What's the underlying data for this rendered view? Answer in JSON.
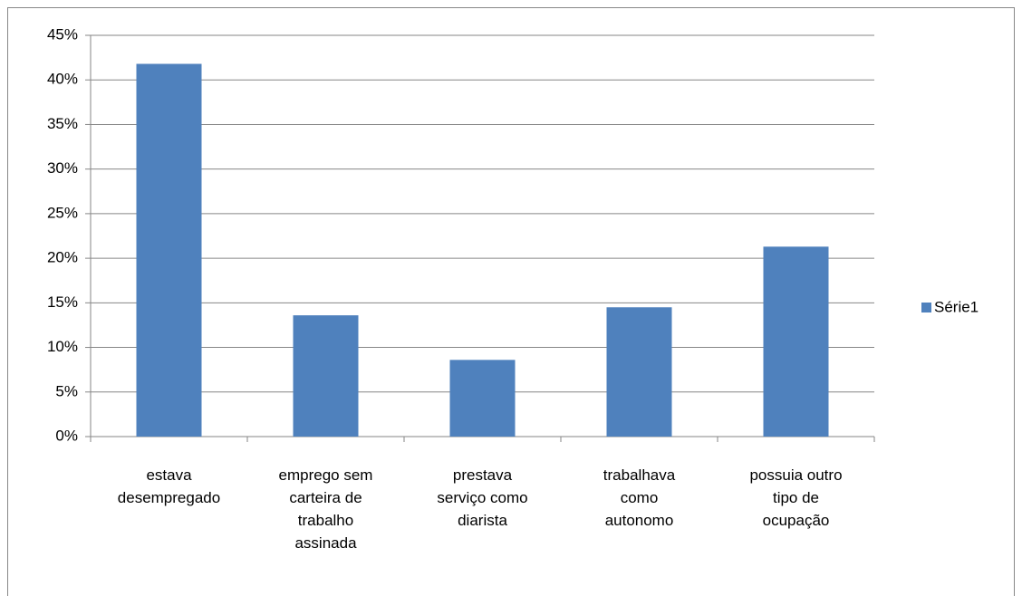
{
  "chart_data": {
    "type": "bar",
    "categories": [
      "estava\ndesempregado",
      "emprego sem\ncarteira de\ntrabalho\nassinada",
      "prestava\nserviço como\ndiarista",
      "trabalhava\ncomo\nautonomo",
      "possuia outro\ntipo de\nocupação"
    ],
    "series": [
      {
        "name": "Série1",
        "color": "#4f81bd",
        "values": [
          41.8,
          13.6,
          8.6,
          14.5,
          21.3
        ]
      }
    ],
    "ylim": [
      0,
      45
    ],
    "yticks": [
      {
        "value": 0,
        "label": "0%"
      },
      {
        "value": 5,
        "label": "5%"
      },
      {
        "value": 10,
        "label": "10%"
      },
      {
        "value": 15,
        "label": "15%"
      },
      {
        "value": 20,
        "label": "20%"
      },
      {
        "value": 25,
        "label": "25%"
      },
      {
        "value": 30,
        "label": "30%"
      },
      {
        "value": 35,
        "label": "35%"
      },
      {
        "value": 40,
        "label": "40%"
      },
      {
        "value": 45,
        "label": "45%"
      }
    ],
    "grid": true,
    "legend": "right"
  }
}
